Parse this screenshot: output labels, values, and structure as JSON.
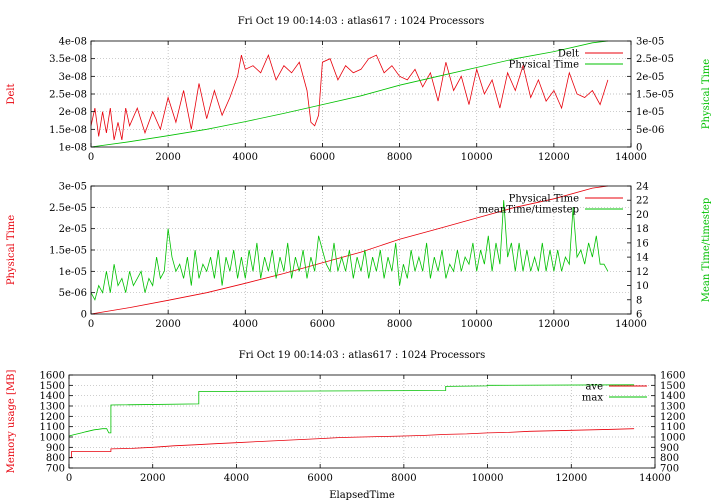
{
  "chart_data": [
    {
      "type": "line",
      "title": "Fri Oct 19 00:14:03 : atlas617 : 1024 Processors",
      "xlabel": "",
      "xlim": [
        0,
        14000
      ],
      "x_ticks": [
        "0",
        "2000",
        "4000",
        "6000",
        "8000",
        "10000",
        "12000",
        "14000"
      ],
      "y_left": {
        "label": "Delt",
        "lim": [
          1e-08,
          4e-08
        ],
        "ticks": [
          "1e-08",
          "1.5e-08",
          "2e-08",
          "2.5e-08",
          "3e-08",
          "3.5e-08",
          "4e-08"
        ]
      },
      "y_right": {
        "label": "Physical Time",
        "lim": [
          0,
          3e-05
        ],
        "ticks": [
          "0",
          "5e-06",
          "1e-05",
          "1.5e-05",
          "2e-05",
          "2.5e-05",
          "3e-05"
        ]
      },
      "legend_position": "top-right",
      "grid": true,
      "series": [
        {
          "name": "Delt",
          "axis": "left",
          "color": "#e8000b",
          "x": [
            0,
            100,
            200,
            300,
            400,
            500,
            600,
            700,
            800,
            900,
            1000,
            1200,
            1400,
            1600,
            1800,
            2000,
            2200,
            2400,
            2600,
            2800,
            3000,
            3200,
            3400,
            3600,
            3800,
            3900,
            4000,
            4200,
            4400,
            4600,
            4800,
            5000,
            5200,
            5400,
            5600,
            5700,
            5800,
            5900,
            6000,
            6200,
            6400,
            6600,
            6800,
            7000,
            7200,
            7400,
            7600,
            7800,
            8000,
            8200,
            8400,
            8600,
            8800,
            9000,
            9200,
            9400,
            9600,
            9800,
            10000,
            10200,
            10400,
            10600,
            10800,
            11000,
            11200,
            11400,
            11600,
            11800,
            12000,
            12200,
            12400,
            12600,
            12800,
            13000,
            13200,
            13400
          ],
          "values": [
            1.6e-08,
            2.1e-08,
            1.3e-08,
            2e-08,
            1.4e-08,
            2.1e-08,
            1.2e-08,
            1.7e-08,
            1.2e-08,
            2.1e-08,
            1.6e-08,
            2.1e-08,
            1.4e-08,
            2e-08,
            1.5e-08,
            2.4e-08,
            1.7e-08,
            2.6e-08,
            1.5e-08,
            2.8e-08,
            1.8e-08,
            2.6e-08,
            1.9e-08,
            2.4e-08,
            3e-08,
            3.6e-08,
            3.2e-08,
            3.3e-08,
            3.1e-08,
            3.6e-08,
            2.9e-08,
            3.3e-08,
            3.1e-08,
            3.4e-08,
            2.6e-08,
            1.7e-08,
            1.6e-08,
            1.9e-08,
            3.4e-08,
            3.5e-08,
            2.9e-08,
            3.3e-08,
            3.1e-08,
            3.2e-08,
            3.5e-08,
            3.6e-08,
            3.1e-08,
            3.3e-08,
            3e-08,
            2.9e-08,
            3.2e-08,
            2.7e-08,
            3.1e-08,
            2.3e-08,
            3.4e-08,
            2.6e-08,
            3e-08,
            2.2e-08,
            3.2e-08,
            2.5e-08,
            2.9e-08,
            2.1e-08,
            3.1e-08,
            2.6e-08,
            3.3e-08,
            2.4e-08,
            2.9e-08,
            2.3e-08,
            2.6e-08,
            2.1e-08,
            3.1e-08,
            2.5e-08,
            2.4e-08,
            2.6e-08,
            2.2e-08,
            2.9e-08
          ]
        },
        {
          "name": "Physical Time",
          "axis": "right",
          "color": "#00c000",
          "x": [
            0,
            1000,
            2000,
            3000,
            4000,
            5000,
            6000,
            7000,
            8000,
            9000,
            10000,
            11000,
            12000,
            13000,
            13400
          ],
          "values": [
            0,
            1.5e-06,
            3.2e-06,
            5e-06,
            7.2e-06,
            9.5e-06,
            1.2e-05,
            1.45e-05,
            1.75e-05,
            2e-05,
            2.25e-05,
            2.5e-05,
            2.7e-05,
            2.95e-05,
            3e-05
          ]
        }
      ]
    },
    {
      "type": "line",
      "title": "",
      "xlabel": "",
      "xlim": [
        0,
        14000
      ],
      "x_ticks": [
        "0",
        "2000",
        "4000",
        "6000",
        "8000",
        "10000",
        "12000",
        "14000"
      ],
      "y_left": {
        "label": "Physical Time",
        "lim": [
          0,
          3e-05
        ],
        "ticks": [
          "0",
          "5e-06",
          "1e-05",
          "1.5e-05",
          "2e-05",
          "2.5e-05",
          "3e-05"
        ]
      },
      "y_right": {
        "label": "Mean Time/timestep",
        "lim": [
          6,
          24
        ],
        "ticks": [
          "6",
          "8",
          "10",
          "12",
          "14",
          "16",
          "18",
          "20",
          "22",
          "24"
        ]
      },
      "legend_position": "top-right",
      "grid": true,
      "series": [
        {
          "name": "Physical Time",
          "axis": "left",
          "color": "#e8000b",
          "x": [
            0,
            1000,
            2000,
            3000,
            4000,
            5000,
            6000,
            7000,
            8000,
            9000,
            10000,
            11000,
            12000,
            13000,
            13400
          ],
          "values": [
            0,
            1.5e-06,
            3.2e-06,
            5e-06,
            7.2e-06,
            9.5e-06,
            1.2e-05,
            1.45e-05,
            1.75e-05,
            2e-05,
            2.25e-05,
            2.5e-05,
            2.7e-05,
            2.95e-05,
            3e-05
          ]
        },
        {
          "name": "meanTime/timestep",
          "axis": "right",
          "color": "#00c000",
          "x": [
            0,
            100,
            200,
            300,
            400,
            500,
            600,
            700,
            800,
            900,
            1000,
            1100,
            1200,
            1300,
            1400,
            1500,
            1600,
            1700,
            1800,
            1900,
            2000,
            2100,
            2200,
            2300,
            2400,
            2500,
            2600,
            2700,
            2800,
            2900,
            3000,
            3100,
            3200,
            3300,
            3400,
            3500,
            3600,
            3700,
            3800,
            3900,
            4000,
            4100,
            4200,
            4300,
            4400,
            4500,
            4600,
            4700,
            4800,
            4900,
            5000,
            5100,
            5200,
            5300,
            5400,
            5500,
            5600,
            5700,
            5800,
            5900,
            6000,
            6100,
            6200,
            6300,
            6400,
            6500,
            6600,
            6700,
            6800,
            6900,
            7000,
            7100,
            7200,
            7300,
            7400,
            7500,
            7600,
            7700,
            7800,
            7900,
            8000,
            8100,
            8200,
            8300,
            8400,
            8500,
            8600,
            8700,
            8800,
            8900,
            9000,
            9100,
            9200,
            9300,
            9400,
            9500,
            9600,
            9700,
            9800,
            9900,
            10000,
            10100,
            10200,
            10300,
            10400,
            10500,
            10600,
            10700,
            10800,
            10900,
            11000,
            11100,
            11200,
            11300,
            11400,
            11500,
            11600,
            11700,
            11800,
            11900,
            12000,
            12100,
            12200,
            12300,
            12400,
            12500,
            12600,
            12700,
            12800,
            12900,
            13000,
            13100,
            13200,
            13300,
            13400
          ],
          "values": [
            9,
            8,
            10,
            9,
            12,
            9,
            13,
            10,
            11,
            9,
            12,
            10,
            11,
            12,
            9,
            11,
            10,
            14,
            11,
            12,
            18,
            14,
            12,
            13,
            11,
            14,
            10,
            15,
            11,
            13,
            12,
            14,
            11,
            15,
            10,
            14,
            12,
            15,
            11,
            14,
            11,
            15,
            12,
            16,
            11,
            14,
            12,
            15,
            11,
            14,
            12,
            16,
            11,
            14,
            12,
            15,
            11,
            14,
            12,
            17,
            15,
            13,
            12,
            16,
            12,
            14,
            12,
            15,
            11,
            14,
            12,
            15,
            11,
            14,
            12,
            15,
            11,
            14,
            12,
            16,
            10,
            13,
            11,
            15,
            12,
            14,
            12,
            16,
            11,
            14,
            12,
            15,
            11,
            13,
            12,
            15,
            12,
            14,
            13,
            16,
            12,
            15,
            13,
            17,
            12,
            16,
            13,
            22,
            14,
            16,
            12,
            16,
            12,
            15,
            12,
            14,
            12,
            16,
            12,
            15,
            12,
            15,
            12,
            14,
            13,
            21,
            14,
            15,
            13,
            16,
            14,
            17,
            13,
            13,
            12
          ]
        }
      ]
    },
    {
      "type": "line",
      "title": "Fri Oct 19 00:14:03 : atlas617 : 1024 Processors",
      "xlabel": "ElapsedTime",
      "xlim": [
        0,
        14000
      ],
      "x_ticks": [
        "0",
        "2000",
        "4000",
        "6000",
        "8000",
        "10000",
        "12000",
        "14000"
      ],
      "y_left": {
        "label": "Memory usage [MB]",
        "lim": [
          700,
          1600
        ],
        "ticks": [
          "700",
          "800",
          "900",
          "1000",
          "1100",
          "1200",
          "1300",
          "1400",
          "1500",
          "1600"
        ]
      },
      "y_right": {
        "label": "",
        "lim": [
          700,
          1600
        ],
        "ticks": [
          "700",
          "800",
          "900",
          "1000",
          "1100",
          "1200",
          "1300",
          "1400",
          "1500",
          "1600"
        ]
      },
      "legend_position": "top-right",
      "grid": true,
      "series": [
        {
          "name": "ave",
          "axis": "left",
          "color": "#e8000b",
          "x": [
            0,
            60,
            60,
            1000,
            1000,
            1500,
            2000,
            2500,
            3000,
            3500,
            4000,
            4500,
            5000,
            5500,
            6000,
            6500,
            7000,
            7500,
            8000,
            8500,
            9000,
            9500,
            10000,
            10500,
            11000,
            11500,
            12000,
            12500,
            13000,
            13500
          ],
          "values": [
            800,
            800,
            860,
            860,
            885,
            890,
            900,
            915,
            925,
            935,
            945,
            955,
            965,
            975,
            985,
            995,
            1000,
            1005,
            1010,
            1015,
            1025,
            1030,
            1040,
            1045,
            1055,
            1060,
            1065,
            1070,
            1075,
            1080
          ]
        },
        {
          "name": "max",
          "axis": "left",
          "color": "#00c000",
          "x": [
            0,
            100,
            200,
            300,
            400,
            500,
            600,
            700,
            800,
            900,
            950,
            1000,
            1000,
            3100,
            3100,
            9000,
            9000,
            10000,
            10000,
            13500
          ],
          "values": [
            1010,
            1020,
            1030,
            1040,
            1050,
            1060,
            1070,
            1075,
            1080,
            1080,
            1040,
            1040,
            1310,
            1320,
            1440,
            1450,
            1490,
            1495,
            1500,
            1505
          ]
        }
      ]
    }
  ]
}
